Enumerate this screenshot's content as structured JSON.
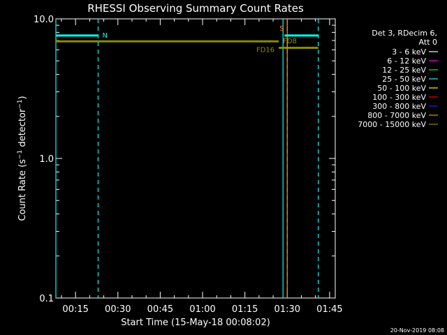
{
  "chart_data": {
    "type": "line",
    "title": "RHESSI Observing Summary Count Rates",
    "xlabel": "Start Time (15-May-18 00:08:02)",
    "ylabel": "Count Rate (s⁻¹ detector⁻¹)",
    "ylabel_parts": {
      "a": "Count Rate (s",
      "exp1": "−1",
      "b": " detector",
      "exp2": "−1",
      "c": ")"
    },
    "yscale": "log",
    "ylim": [
      0.1,
      10.0
    ],
    "xlim": [
      "00:08:02",
      "01:47:00"
    ],
    "yticks": [
      "10.0",
      "1.0",
      "0.1"
    ],
    "xticks": [
      "00:15",
      "00:30",
      "00:45",
      "01:00",
      "01:15",
      "01:30",
      "01:45"
    ],
    "legend_header": [
      "Det 3, RDecim 6,",
      "Att 0"
    ],
    "legend_placement": "right",
    "series": [
      {
        "name": "3 - 6 keV",
        "color": "#ffffff",
        "x": [],
        "y": []
      },
      {
        "name": "6 - 12 keV",
        "color": "#ff00ff",
        "x": [],
        "y": []
      },
      {
        "name": "12 - 25 keV",
        "color": "#00ff00",
        "x": [],
        "y": []
      },
      {
        "name": "25 - 50 keV",
        "color": "#00ffff",
        "x": [],
        "y": []
      },
      {
        "name": "50 - 100 keV",
        "color": "#ffff00",
        "x": [],
        "y": []
      },
      {
        "name": "100 - 300 keV",
        "color": "#ff0000",
        "x": [],
        "y": []
      },
      {
        "name": "300 - 800 keV",
        "color": "#2020ff",
        "x": [],
        "y": []
      },
      {
        "name": "800 - 7000 keV",
        "color": "#ff8c00",
        "x": [],
        "y": []
      },
      {
        "name": "7000 - 15000 keV",
        "color": "#8b8b00",
        "x": [],
        "y": []
      }
    ],
    "flag_bars": [
      {
        "label": "N",
        "color": "#00ffff",
        "y": 7.6,
        "segments": [
          [
            "00:08:02",
            "00:23:00"
          ],
          [
            "01:29:00",
            "01:41:00"
          ]
        ]
      },
      {
        "label": "FD8",
        "color": "#8b8b00",
        "y": 6.9,
        "segments": [
          [
            "00:08:02",
            "01:27:00"
          ]
        ]
      },
      {
        "label": "FD16",
        "color": "#8b8b00",
        "y": 6.2,
        "segments": [
          [
            "01:27:00",
            "01:41:00"
          ]
        ]
      }
    ],
    "markers": [
      {
        "label": "S",
        "color": "#ff8c00",
        "time": "01:30:00",
        "style": "solid"
      }
    ],
    "day_boundaries": [
      {
        "color": "#00ffff",
        "time": "00:08:02",
        "style": "solid"
      },
      {
        "color": "#00ffff",
        "time": "00:23:00",
        "style": "dashed"
      },
      {
        "color": "#00ffff",
        "time": "01:28:30",
        "style": "solid"
      },
      {
        "color": "#00ffff",
        "time": "01:41:00",
        "style": "dashed"
      },
      {
        "color": "#ff8c00",
        "time": "01:30:00",
        "style": "dashed"
      }
    ]
  },
  "footer": {
    "date": "20-Nov-2019 08:08"
  }
}
